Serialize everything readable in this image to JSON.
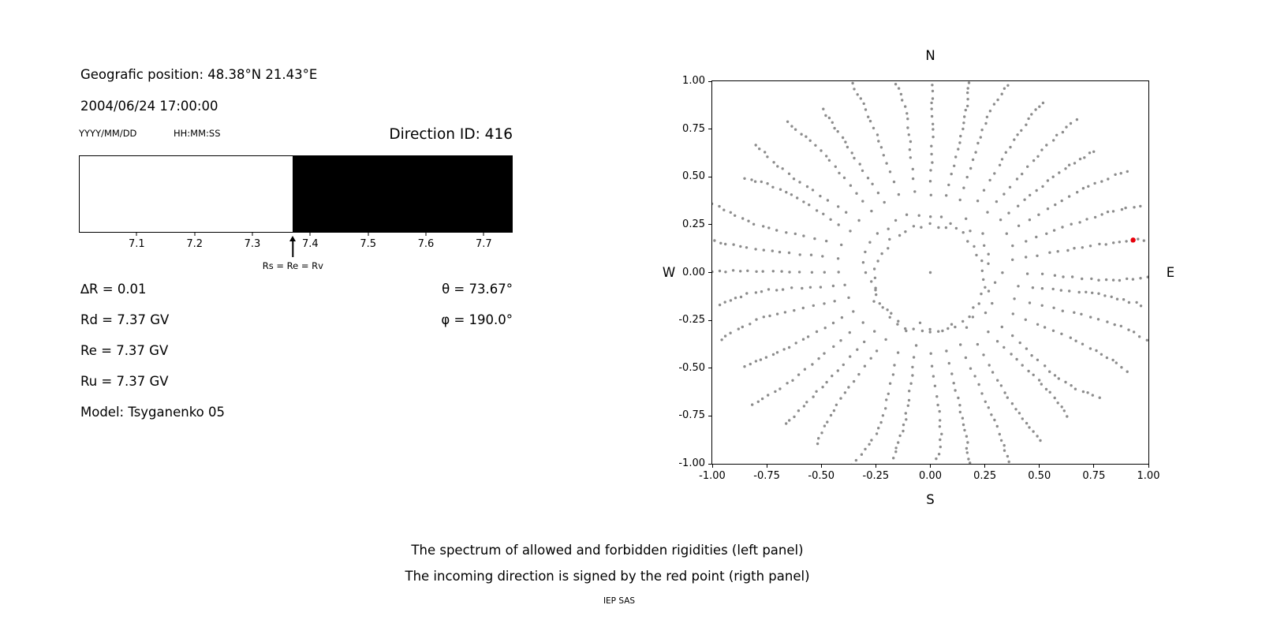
{
  "info": {
    "geographic_position": "Geografic position: 48.38°N 21.43°E",
    "datetime": "2004/06/24 17:00:00",
    "date_format_label": "YYYY/MM/DD",
    "time_format_label": "HH:MM:SS",
    "direction_id": "Direction ID: 416",
    "delta_r": "∆R = 0.01",
    "rd": "Rd = 7.37 GV",
    "re": "Re = 7.37 GV",
    "ru": "Ru = 7.37 GV",
    "model": "Model: Tsyganenko 05",
    "theta": "θ = 73.67°",
    "phi": "φ = 190.0°"
  },
  "captions": {
    "line1": "The spectrum of allowed and forbidden rigidities (left panel)",
    "line2": "The incoming direction is signed by the red point (rigth panel)",
    "credit": "IEP SAS"
  },
  "chart_data": [
    {
      "type": "bar",
      "name": "rigidity-spectrum",
      "x_min": 7.0,
      "x_max": 7.75,
      "x_ticks": [
        "7.1",
        "7.2",
        "7.3",
        "7.4",
        "7.5",
        "7.6",
        "7.7"
      ],
      "x_tick_values": [
        7.1,
        7.2,
        7.3,
        7.4,
        7.5,
        7.6,
        7.7
      ],
      "regions": [
        {
          "label": "allowed",
          "from": 7.0,
          "to": 7.37,
          "color": "#ffffff"
        },
        {
          "label": "forbidden",
          "from": 7.37,
          "to": 7.75,
          "color": "#000000"
        }
      ],
      "arrow": {
        "x": 7.37,
        "label": "Rs = Re = Rv"
      }
    },
    {
      "type": "scatter",
      "name": "incoming-direction-map",
      "xlim": [
        -1,
        1
      ],
      "ylim": [
        -1,
        1
      ],
      "x_ticks": [
        "-1.00",
        "-0.75",
        "-0.50",
        "-0.25",
        "0.00",
        "0.25",
        "0.50",
        "0.75",
        "1.00"
      ],
      "x_tick_values": [
        -1,
        -0.75,
        -0.5,
        -0.25,
        0,
        0.25,
        0.5,
        0.75,
        1
      ],
      "y_ticks": [
        "1.00",
        "0.75",
        "0.50",
        "0.25",
        "0.00",
        "-0.25",
        "-0.50",
        "-0.75",
        "-1.00"
      ],
      "y_tick_values": [
        1,
        0.75,
        0.5,
        0.25,
        0,
        -0.25,
        -0.5,
        -0.75,
        -1
      ],
      "compass_labels": {
        "top": "N",
        "right": "E",
        "bottom": "S",
        "left": "W"
      },
      "dot_color": "#8c8c8c",
      "dot_pattern": {
        "n_spokes": 36,
        "spoke_angle_step_deg": 10,
        "spoke_r_start": 0.3,
        "spoke_r_end": 1.0,
        "points_per_spoke": 18,
        "density_power": 0.65,
        "inner_ring": {
          "rx": 0.25,
          "ry": 0.28,
          "cy": -0.03,
          "n_points": 40
        },
        "center_dot": true
      },
      "red_point": {
        "x": 0.93,
        "y": 0.17,
        "color": "#e8000b"
      }
    }
  ]
}
